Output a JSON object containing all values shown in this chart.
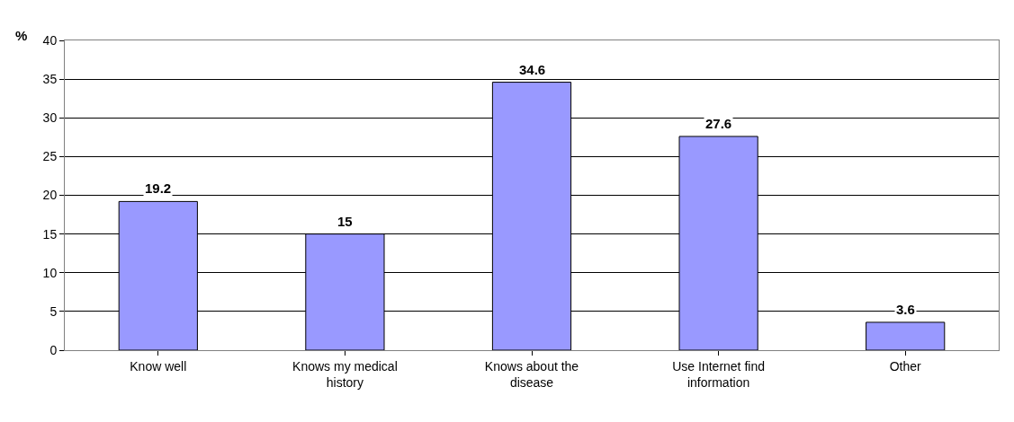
{
  "chart_data": {
    "type": "bar",
    "ylabel": "%",
    "categories": [
      "Know well",
      "Knows my medical history",
      "Knows about the disease",
      "Use Internet find information",
      "Other"
    ],
    "values": [
      19.2,
      15,
      34.6,
      27.6,
      3.6
    ],
    "color": "#9999ff",
    "ylim": [
      0,
      40
    ],
    "yticks": [
      0,
      5,
      10,
      15,
      20,
      25,
      30,
      35,
      40
    ],
    "grid": "y",
    "data_labels": true
  }
}
